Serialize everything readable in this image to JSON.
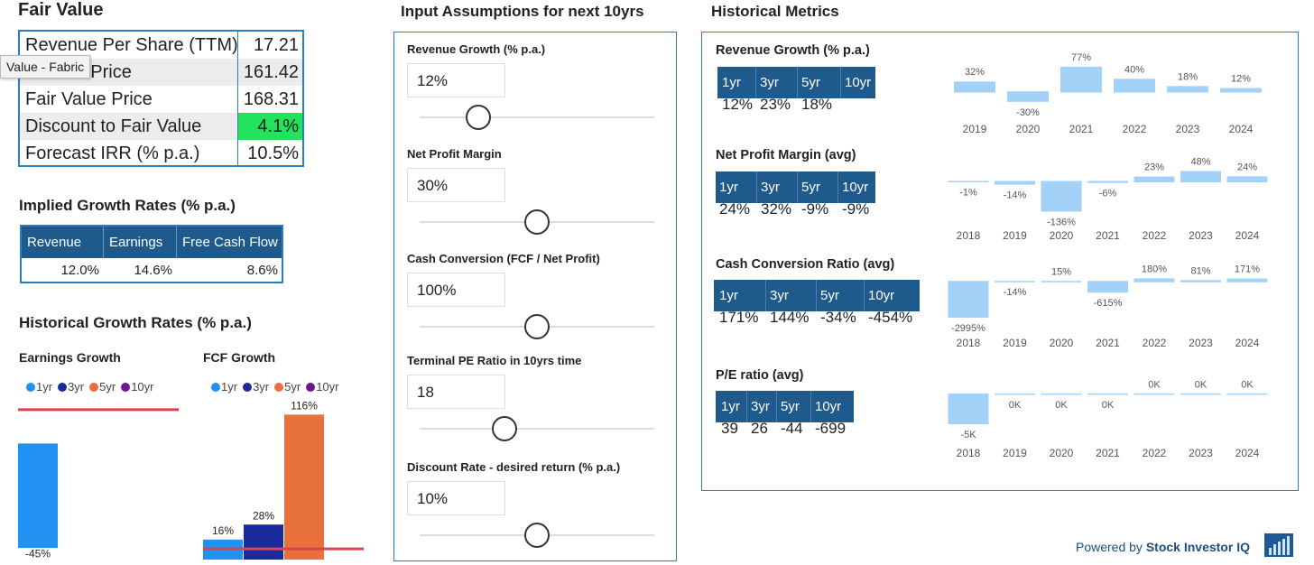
{
  "fair_value": {
    "title": "Fair Value",
    "rows": [
      [
        "Revenue Per Share (TTM)",
        "17.21"
      ],
      [
        "Current Price",
        "161.42"
      ],
      [
        "Fair Value Price",
        "168.31"
      ],
      [
        "Discount to Fair Value",
        "4.1%"
      ],
      [
        "Forecast IRR (% p.a.)",
        "10.5%"
      ]
    ],
    "tooltip": "Value - Fabric"
  },
  "implied_growth": {
    "title": "Implied Growth Rates (% p.a.)",
    "headers": [
      "Revenue",
      "Earnings",
      "Free Cash Flow"
    ],
    "values": [
      "12.0%",
      "14.6%",
      "8.6%"
    ]
  },
  "historical_growth": {
    "title": "Historical Growth Rates (% p.a.)"
  },
  "inputs": {
    "title": "Input Assumptions for next 10yrs",
    "items": [
      {
        "label": "Revenue Growth (% p.a.)",
        "value": 12,
        "value_label": "12%",
        "min": 0,
        "max": 48
      },
      {
        "label": "Net Profit Margin",
        "value": 30,
        "value_label": "30%",
        "min": 0,
        "max": 60
      },
      {
        "label": "Cash Conversion (FCF / Net Profit)",
        "value": 100,
        "value_label": "100%",
        "min": 0,
        "max": 200
      },
      {
        "label": "Terminal PE Ratio in 10yrs time",
        "value": 18,
        "min": 0,
        "max": 50
      },
      {
        "label": "Discount Rate - desired return (% p.a.)",
        "value": 10,
        "value_label": "10%",
        "min": 0,
        "max": 20
      }
    ]
  },
  "historical_metrics": {
    "title": "Historical Metrics",
    "sections": [
      {
        "title": "Revenue Growth (% p.a.)",
        "headers": [
          "1yr",
          "3yr",
          "5yr",
          "10yr"
        ],
        "values": [
          "12%",
          "23%",
          "18%"
        ]
      },
      {
        "title": "Net Profit Margin (avg)",
        "headers": [
          "1yr",
          "3yr",
          "5yr",
          "10yr"
        ],
        "values": [
          "24%",
          "32%",
          "-9%",
          "-9%"
        ]
      },
      {
        "title": "Cash Conversion Ratio (avg)",
        "headers": [
          "1yr",
          "3yr",
          "5yr",
          "10yr"
        ],
        "values": [
          "171%",
          "144%",
          "-34%",
          "-454%"
        ]
      },
      {
        "title": "P/E ratio (avg)",
        "headers": [
          "1yr",
          "3yr",
          "5yr",
          "10yr"
        ],
        "values": [
          "39",
          "26",
          "-44",
          "-699"
        ]
      }
    ]
  },
  "chart_data": [
    {
      "type": "bar",
      "title": "Earnings Growth",
      "ylim": [
        -50,
        20
      ],
      "series": [
        {
          "name": "1yr",
          "color": "#2191f3",
          "values": [
            -45
          ],
          "value_labels": [
            "-45%"
          ]
        },
        {
          "name": "3yr",
          "color": "#1a2a9c",
          "values": [
            null
          ]
        },
        {
          "name": "5yr",
          "color": "#e8703a",
          "values": [
            null
          ]
        },
        {
          "name": "10yr",
          "color": "#6a1a8a",
          "values": [
            null
          ]
        }
      ],
      "reference_line": {
        "value": 14.6,
        "color": "#d9434f"
      }
    },
    {
      "type": "bar",
      "title": "FCF Growth",
      "ylim": [
        0,
        130
      ],
      "series": [
        {
          "name": "1yr",
          "color": "#2191f3",
          "values": [
            16
          ],
          "value_labels": [
            "16%"
          ]
        },
        {
          "name": "3yr",
          "color": "#1a2a9c",
          "values": [
            28
          ],
          "value_labels": [
            "28%"
          ]
        },
        {
          "name": "5yr",
          "color": "#e8703a",
          "values": [
            116
          ],
          "value_labels": [
            "116%"
          ]
        },
        {
          "name": "10yr",
          "color": "#6a1a8a",
          "values": [
            null
          ]
        }
      ],
      "reference_line": {
        "value": 8.6,
        "color": "#d9434f"
      }
    },
    {
      "type": "bar",
      "categories": [
        "2019",
        "2020",
        "2021",
        "2022",
        "2023",
        "2024"
      ],
      "values": [
        32,
        -30,
        77,
        40,
        18,
        12
      ],
      "value_labels": [
        "32%",
        "-30%",
        "77%",
        "40%",
        "18%",
        "12%"
      ],
      "color": "#a3d2f9",
      "ylim": [
        -77,
        115
      ]
    },
    {
      "type": "bar",
      "categories": [
        "2018",
        "2019",
        "2020",
        "2021",
        "2022",
        "2023",
        "2024"
      ],
      "values": [
        -1,
        -14,
        -136,
        -6,
        23,
        48,
        24
      ],
      "value_labels": [
        "-1%",
        "-14%",
        "-136%",
        "-6%",
        "23%",
        "48%",
        "24%"
      ],
      "color": "#a3d2f9",
      "ylim": [
        -200,
        128
      ]
    },
    {
      "type": "bar",
      "categories": [
        "2018",
        "2019",
        "2020",
        "2021",
        "2022",
        "2023",
        "2024"
      ],
      "values": [
        -2995,
        -14,
        15,
        -615,
        180,
        81,
        171
      ],
      "value_labels": [
        "-2995%",
        "-14%",
        "15%",
        "-615%",
        "180%",
        "81%",
        "171%"
      ],
      "color": "#a3d2f9",
      "ylim": [
        -2000,
        1350
      ]
    },
    {
      "type": "bar",
      "categories": [
        "2018",
        "2019",
        "2020",
        "2021",
        "2022",
        "2023",
        "2024"
      ],
      "values": [
        -5000,
        -100,
        -50,
        -80,
        30,
        40,
        35
      ],
      "value_labels": [
        "-5K",
        "0K",
        "0K",
        "0K",
        "0K",
        "0K",
        "0K"
      ],
      "color": "#a3d2f9",
      "ylim": [
        -6500,
        4000
      ]
    }
  ],
  "footer": {
    "prefix": "Powered by",
    "brand": "Stock Investor IQ"
  }
}
